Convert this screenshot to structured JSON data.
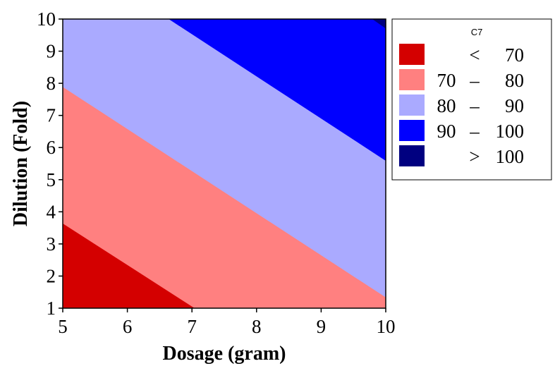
{
  "chart_data": {
    "type": "contour",
    "xlabel": "Dosage (gram)",
    "ylabel": "Dilution (Fold)",
    "xlim": [
      5,
      10
    ],
    "ylim": [
      1,
      10
    ],
    "x_ticks": [
      "5",
      "6",
      "7",
      "8",
      "9",
      "10"
    ],
    "y_ticks": [
      "1",
      "2",
      "3",
      "4",
      "5",
      "6",
      "7",
      "8",
      "9",
      "10"
    ],
    "grid": false,
    "legend_position": "right",
    "legend": {
      "title": "C7",
      "items": [
        {
          "op": "<",
          "low": "",
          "high": "70",
          "color": "#d40000"
        },
        {
          "op": "–",
          "low": "70",
          "high": "80",
          "color": "#ff8080"
        },
        {
          "op": "–",
          "low": "80",
          "high": "90",
          "color": "#aaaaff"
        },
        {
          "op": "–",
          "low": "90",
          "high": "100",
          "color": "#0000ff"
        },
        {
          "op": ">",
          "low": "",
          "high": "100",
          "color": "#000080"
        }
      ]
    },
    "regions": [
      {
        "level": "< 70",
        "color": "#d40000",
        "polygon": [
          [
            5,
            1
          ],
          [
            5,
            3.65
          ],
          [
            7.05,
            1
          ]
        ]
      },
      {
        "level": "70 – 80",
        "color": "#ff8080",
        "polygon": [
          [
            5,
            3.65
          ],
          [
            5,
            7.9
          ],
          [
            10,
            1.35
          ],
          [
            10,
            1
          ],
          [
            7.05,
            1
          ]
        ]
      },
      {
        "level": "80 – 90",
        "color": "#aaaaff",
        "polygon": [
          [
            5,
            7.9
          ],
          [
            5,
            10
          ],
          [
            6.65,
            10
          ],
          [
            10,
            5.6
          ],
          [
            10,
            1.35
          ]
        ]
      },
      {
        "level": "90 – 100",
        "color": "#0000ff",
        "polygon": [
          [
            6.65,
            10
          ],
          [
            9.97,
            10
          ],
          [
            10,
            9.6
          ],
          [
            10,
            5.6
          ]
        ]
      },
      {
        "level": "> 100",
        "color": "#000080",
        "polygon": [
          [
            9.8,
            10
          ],
          [
            10,
            10
          ],
          [
            10,
            9.72
          ]
        ]
      }
    ]
  }
}
